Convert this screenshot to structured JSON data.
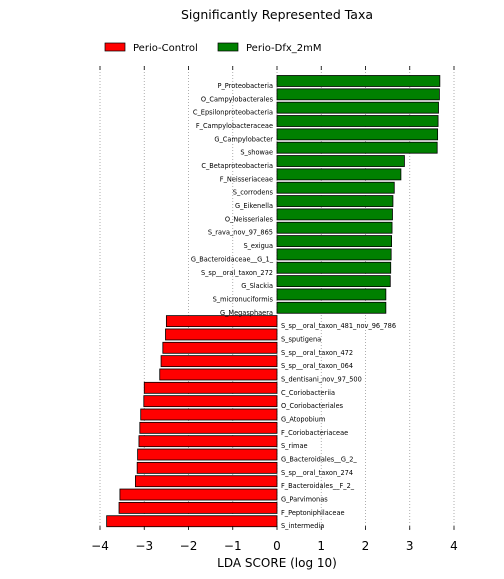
{
  "chart_data": {
    "type": "bar",
    "orientation": "horizontal",
    "title": "Significantly Represented Taxa",
    "xlabel": "LDA SCORE (log 10)",
    "ylabel": "",
    "xlim": [
      -4,
      4
    ],
    "xticks": [
      -4,
      -3,
      -2,
      -1,
      0,
      1,
      2,
      3,
      4
    ],
    "grid": {
      "x": true,
      "y": false,
      "style": "dotted"
    },
    "legend": {
      "position": "top",
      "entries": [
        "Perio-Control",
        "Perio-Dfx_2mM"
      ]
    },
    "colors": {
      "Perio-Control": "#ff0000",
      "Perio-Dfx_2mM": "#008000"
    },
    "series": [
      {
        "name": "Perio-Dfx_2mM",
        "categories": [
          "P_Proteobacteria",
          "O_Campylobacterales",
          "C_Epsilonproteobacteria",
          "F_Campylobacteraceae",
          "G_Campylobacter",
          "S_showae",
          "C_Betaproteobacteria",
          "F_Neisseriaceae",
          "S_corrodens",
          "G_Eikenella",
          "O_Neisseriales",
          "S_rava_nov_97_865",
          "S_exigua",
          "G_Bacteroidaceae__G_1_",
          "S_sp__oral_taxon_272",
          "G_Slackia",
          "S_micronuciformis",
          "G_Megasphaera"
        ],
        "values": [
          3.68,
          3.67,
          3.65,
          3.64,
          3.63,
          3.62,
          2.88,
          2.8,
          2.65,
          2.62,
          2.61,
          2.6,
          2.59,
          2.58,
          2.57,
          2.56,
          2.46,
          2.46
        ]
      },
      {
        "name": "Perio-Control",
        "categories": [
          "S_sp__oral_taxon_481_nov_96_786",
          "S_sputigena",
          "S_sp__oral_taxon_472",
          "S_sp__oral_taxon_064",
          "S_dentisani_nov_97_500",
          "C_Coriobacteriia",
          "O_Coriobacteriales",
          "G_Atopobium",
          "F_Coriobacteriaceae",
          "S_rimae",
          "G_Bacteroidales__G_2_",
          "S_sp__oral_taxon_274",
          "F_Bacteroidales__F_2_",
          "G_Parvimonas",
          "F_Peptoniphilaceae",
          "S_intermedia"
        ],
        "values": [
          -2.5,
          -2.52,
          -2.58,
          -2.62,
          -2.65,
          -3.0,
          -3.01,
          -3.08,
          -3.1,
          -3.12,
          -3.15,
          -3.16,
          -3.2,
          -3.55,
          -3.57,
          -3.85
        ]
      }
    ]
  }
}
